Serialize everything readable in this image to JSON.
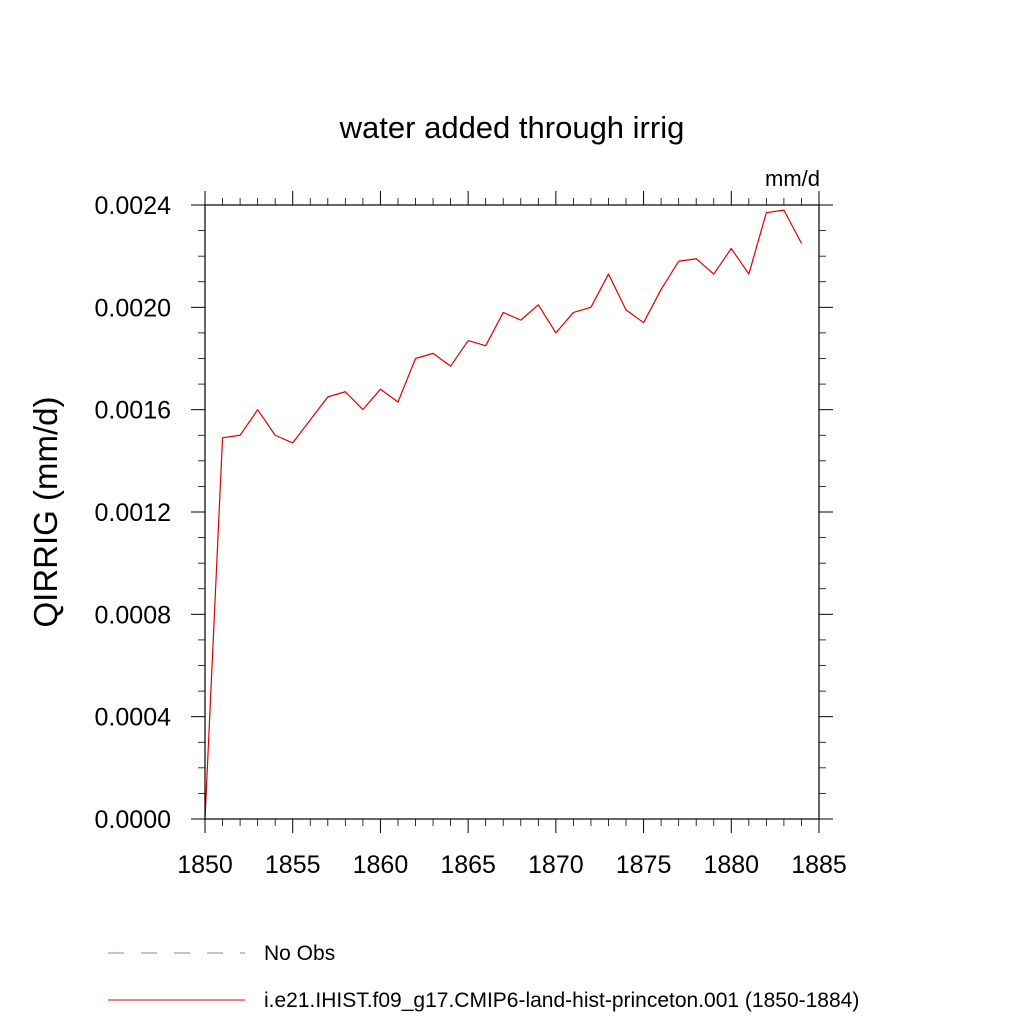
{
  "chart_data": {
    "type": "line",
    "title": "water added through irrig",
    "units": "mm/d",
    "ylabel": "QIRRIG  (mm/d)",
    "xlabel": "",
    "xlim": [
      1850,
      1885
    ],
    "ylim": [
      0.0,
      0.0024
    ],
    "xticks": [
      "1850",
      "1855",
      "1860",
      "1865",
      "1870",
      "1875",
      "1880",
      "1885"
    ],
    "yticks": [
      "0.0000",
      "0.0004",
      "0.0008",
      "0.0012",
      "0.0016",
      "0.0020",
      "0.0024"
    ],
    "grid": false,
    "legend_position": "bottom",
    "legend": [
      {
        "label": "No Obs",
        "color": "#8080c0",
        "style": "dashed"
      },
      {
        "label": "i.e21.IHIST.f09_g17.CMIP6-land-hist-princeton.001 (1850-1884)",
        "color": "#e00000",
        "style": "solid"
      }
    ],
    "series": [
      {
        "name": "i.e21.IHIST.f09_g17.CMIP6-land-hist-princeton.001 (1850-1884)",
        "color": "#e00000",
        "x": [
          1850,
          1851,
          1852,
          1853,
          1854,
          1855,
          1856,
          1857,
          1858,
          1859,
          1860,
          1861,
          1862,
          1863,
          1864,
          1865,
          1866,
          1867,
          1868,
          1869,
          1870,
          1871,
          1872,
          1873,
          1874,
          1875,
          1876,
          1877,
          1878,
          1879,
          1880,
          1881,
          1882,
          1883,
          1884
        ],
        "y": [
          0.0,
          0.00149,
          0.0015,
          0.0016,
          0.0015,
          0.00147,
          0.00156,
          0.00165,
          0.00167,
          0.0016,
          0.00168,
          0.00163,
          0.0018,
          0.00182,
          0.00177,
          0.00187,
          0.00185,
          0.00198,
          0.00195,
          0.00201,
          0.0019,
          0.00198,
          0.002,
          0.00213,
          0.00199,
          0.00194,
          0.00207,
          0.00218,
          0.00219,
          0.00213,
          0.00223,
          0.00213,
          0.00237,
          0.00238,
          0.00225
        ]
      }
    ]
  }
}
